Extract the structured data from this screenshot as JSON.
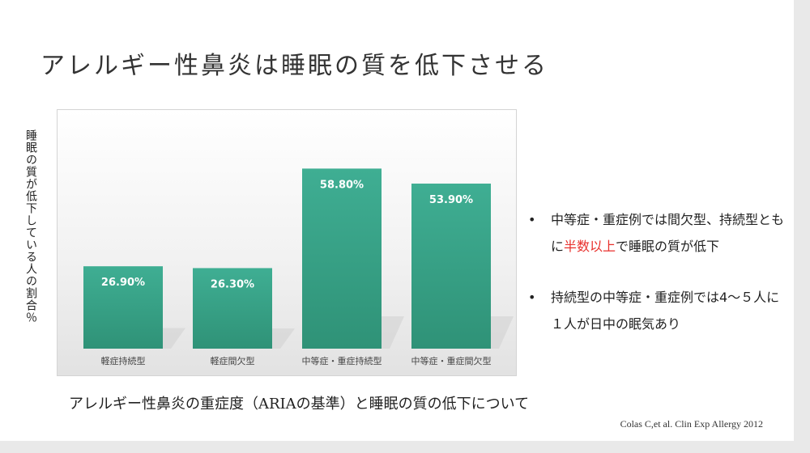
{
  "slide": {
    "title": "アレルギー性鼻炎は睡眠の質を低下させる",
    "caption": "アレルギー性鼻炎の重症度（ARIAの基準）と睡眠の質の低下について",
    "citation": "Colas C,et al. Clin Exp Allergy 2012",
    "bullets": [
      {
        "pre": "中等症・重症例では間欠型、持続型ともに",
        "highlight": "半数以上",
        "post": "で睡眠の質が低下"
      },
      {
        "pre": "持続型の中等症・重症例では4～５人に１人が日中の眠気あり",
        "highlight": "",
        "post": ""
      }
    ]
  },
  "colors": {
    "bar": "#3fae93",
    "bar_dark": "#2f9277",
    "highlight": "#e8302c"
  },
  "chart_data": {
    "type": "bar",
    "categories": [
      "軽症持続型",
      "軽症間欠型",
      "中等症・重症持続型",
      "中等症・重症間欠型"
    ],
    "values": [
      26.9,
      26.3,
      58.8,
      53.9
    ],
    "value_labels": [
      "26.90%",
      "26.30%",
      "58.80%",
      "53.90%"
    ],
    "ylabel": "睡眠の質が低下している人の割合％",
    "ylim": [
      0,
      70
    ],
    "grid": false,
    "legend": "none"
  }
}
